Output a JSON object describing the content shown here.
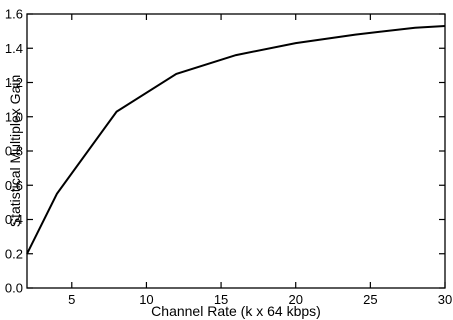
{
  "chart_data": {
    "type": "line",
    "title": "",
    "xlabel": "Channel Rate (k x 64 kbps)",
    "ylabel": "Statistical Multiplex Gain",
    "xlim": [
      2,
      30
    ],
    "ylim": [
      0.0,
      1.6
    ],
    "xticks": [
      5,
      10,
      15,
      20,
      25,
      30
    ],
    "xtick_labels": [
      "5",
      "10",
      "15",
      "20",
      "25",
      "30"
    ],
    "yticks": [
      0.0,
      0.2,
      0.4,
      0.6,
      0.8,
      1.0,
      1.2,
      1.4,
      1.6
    ],
    "ytick_labels": [
      "0.0",
      "0.2",
      "0.4",
      "0.6",
      "0.8",
      "1.0",
      "1.2",
      "1.4",
      "1.6"
    ],
    "grid": false,
    "line_color": "#000000",
    "series": [
      {
        "x": [
          2,
          4,
          8,
          12,
          16,
          20,
          24,
          28,
          30
        ],
        "y": [
          0.2,
          0.55,
          1.03,
          1.25,
          1.36,
          1.43,
          1.48,
          1.52,
          1.53
        ]
      }
    ]
  }
}
